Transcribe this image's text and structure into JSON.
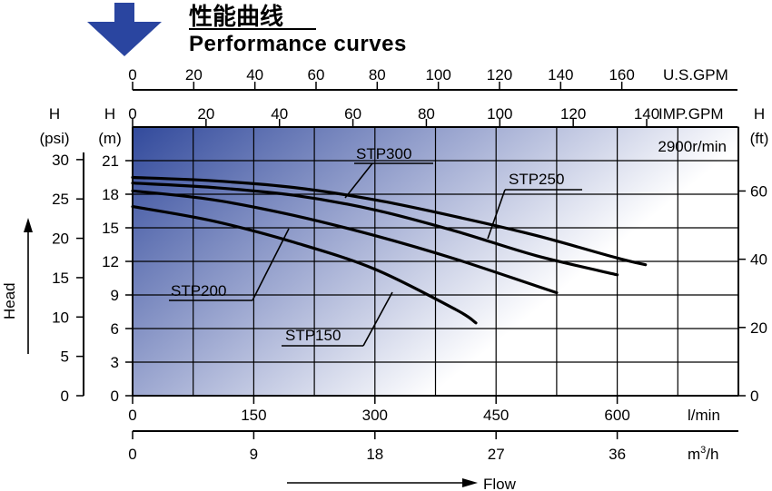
{
  "title_cn": "性能曲线",
  "title_en": "Performance curves",
  "colors": {
    "panel_dark": "#324a9c",
    "panel_light": "#ffffff",
    "curve": "#000000",
    "arrow": "#2a45a0"
  },
  "chart_data": {
    "type": "line",
    "title": "Performance curves",
    "speed_label": "2900r/min",
    "grid": true,
    "axes": {
      "usgpm": {
        "unit": "U.S.GPM",
        "ticks": [
          0,
          20,
          40,
          60,
          80,
          100,
          120,
          140,
          160
        ]
      },
      "impgpm": {
        "unit": "IMP.GPM",
        "ticks": [
          0,
          20,
          40,
          60,
          80,
          100,
          120,
          140
        ]
      },
      "lmin": {
        "unit": "l/min",
        "ticks": [
          0,
          150,
          300,
          450,
          600
        ],
        "range": [
          0,
          750
        ]
      },
      "m3h": {
        "unit": "m3/h",
        "unit_base": "m",
        "unit_sup": "3",
        "unit_tail": "/h",
        "ticks": [
          0,
          9,
          18,
          27,
          36
        ]
      },
      "head_m": {
        "label_top": "H",
        "label_unit": "(m)",
        "ticks": [
          0,
          3,
          6,
          9,
          12,
          15,
          18,
          21
        ],
        "range": [
          0,
          24
        ]
      },
      "head_psi": {
        "label_top": "H",
        "label_unit": "(psi)",
        "ticks": [
          0,
          5,
          10,
          15,
          20,
          25,
          30
        ]
      },
      "head_ft": {
        "label_top": "H",
        "label_unit": "(ft)",
        "ticks": [
          0,
          20,
          40,
          60
        ]
      }
    },
    "xlabel": "Flow",
    "ylabel": "Head",
    "series": [
      {
        "name": "STP300",
        "x": [
          0,
          100,
          200,
          300,
          400,
          500,
          600,
          635
        ],
        "y": [
          19.5,
          19.2,
          18.6,
          17.5,
          16.0,
          14.3,
          12.3,
          11.7
        ]
      },
      {
        "name": "STP250",
        "x": [
          0,
          100,
          200,
          300,
          400,
          500,
          600
        ],
        "y": [
          19.0,
          18.6,
          17.9,
          16.6,
          14.7,
          12.5,
          10.8
        ]
      },
      {
        "name": "STP200",
        "x": [
          0,
          100,
          200,
          300,
          400,
          500,
          525
        ],
        "y": [
          18.3,
          17.5,
          16.1,
          14.3,
          12.2,
          9.8,
          9.2
        ]
      },
      {
        "name": "STP150",
        "x": [
          0,
          100,
          200,
          300,
          400,
          425
        ],
        "y": [
          16.9,
          15.6,
          13.7,
          11.3,
          7.7,
          6.5
        ]
      }
    ]
  }
}
